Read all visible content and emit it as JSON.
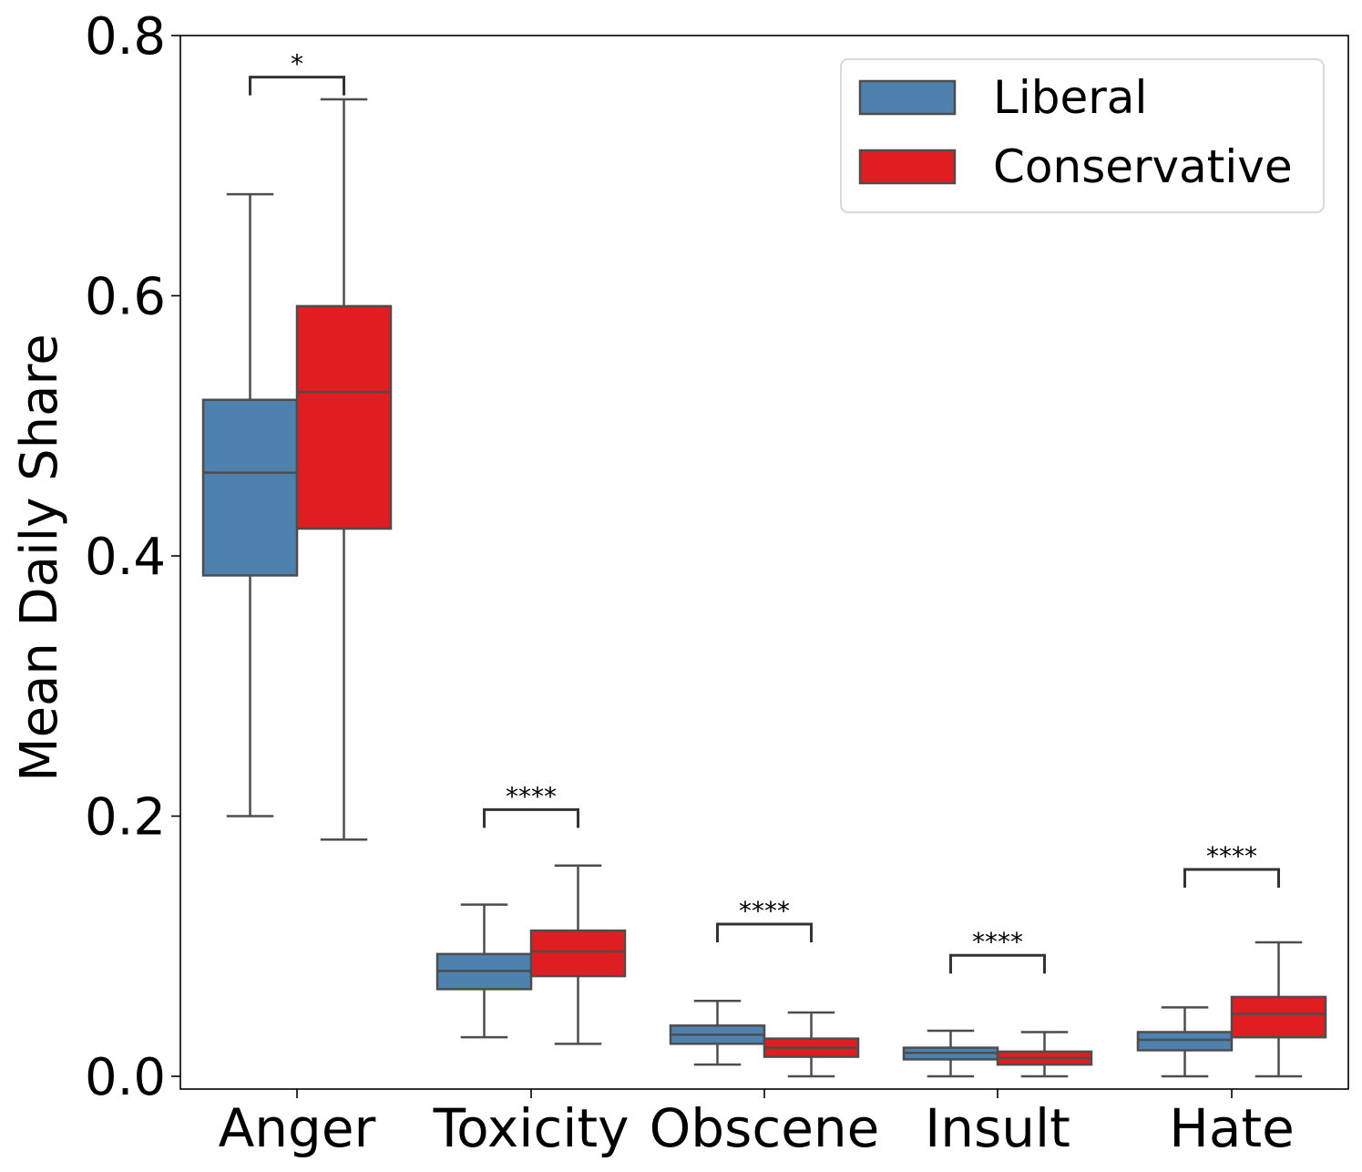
{
  "chart_data": {
    "type": "box",
    "title": "",
    "xlabel": "",
    "ylabel": "Mean Daily Share",
    "ylim": [
      0.0,
      0.8
    ],
    "yticks": [
      "0.0",
      "0.2",
      "0.4",
      "0.6",
      "0.8"
    ],
    "ytick_values": [
      0.0,
      0.2,
      0.4,
      0.6,
      0.8
    ],
    "grid": false,
    "legend_position": "top-right",
    "categories": [
      "Anger",
      "Toxicity",
      "Obscene",
      "Insult",
      "Hate"
    ],
    "series": [
      {
        "name": "Liberal",
        "color": "#4e81ad",
        "boxes": [
          {
            "whisker_low": 0.2,
            "q1": 0.385,
            "median": 0.464,
            "q3": 0.52,
            "whisker_high": 0.678
          },
          {
            "whisker_low": 0.03,
            "q1": 0.067,
            "median": 0.081,
            "q3": 0.094,
            "whisker_high": 0.132
          },
          {
            "whisker_low": 0.009,
            "q1": 0.025,
            "median": 0.032,
            "q3": 0.039,
            "whisker_high": 0.058
          },
          {
            "whisker_low": 0.0,
            "q1": 0.013,
            "median": 0.018,
            "q3": 0.022,
            "whisker_high": 0.035
          },
          {
            "whisker_low": 0.0,
            "q1": 0.02,
            "median": 0.028,
            "q3": 0.034,
            "whisker_high": 0.053
          }
        ]
      },
      {
        "name": "Conservative",
        "color": "#e01e21",
        "boxes": [
          {
            "whisker_low": 0.182,
            "q1": 0.421,
            "median": 0.526,
            "q3": 0.592,
            "whisker_high": 0.751
          },
          {
            "whisker_low": 0.025,
            "q1": 0.077,
            "median": 0.096,
            "q3": 0.112,
            "whisker_high": 0.162
          },
          {
            "whisker_low": 0.0,
            "q1": 0.015,
            "median": 0.022,
            "q3": 0.029,
            "whisker_high": 0.049
          },
          {
            "whisker_low": 0.0,
            "q1": 0.009,
            "median": 0.014,
            "q3": 0.019,
            "whisker_high": 0.034
          },
          {
            "whisker_low": 0.0,
            "q1": 0.03,
            "median": 0.048,
            "q3": 0.061,
            "whisker_high": 0.103
          }
        ]
      }
    ],
    "annotations": [
      {
        "category": "Anger",
        "text": "*",
        "level": 0.768
      },
      {
        "category": "Toxicity",
        "text": "****",
        "level": 0.205
      },
      {
        "category": "Obscene",
        "text": "****",
        "level": 0.117
      },
      {
        "category": "Insult",
        "text": "****",
        "level": 0.093
      },
      {
        "category": "Hate",
        "text": "****",
        "level": 0.159
      }
    ]
  }
}
